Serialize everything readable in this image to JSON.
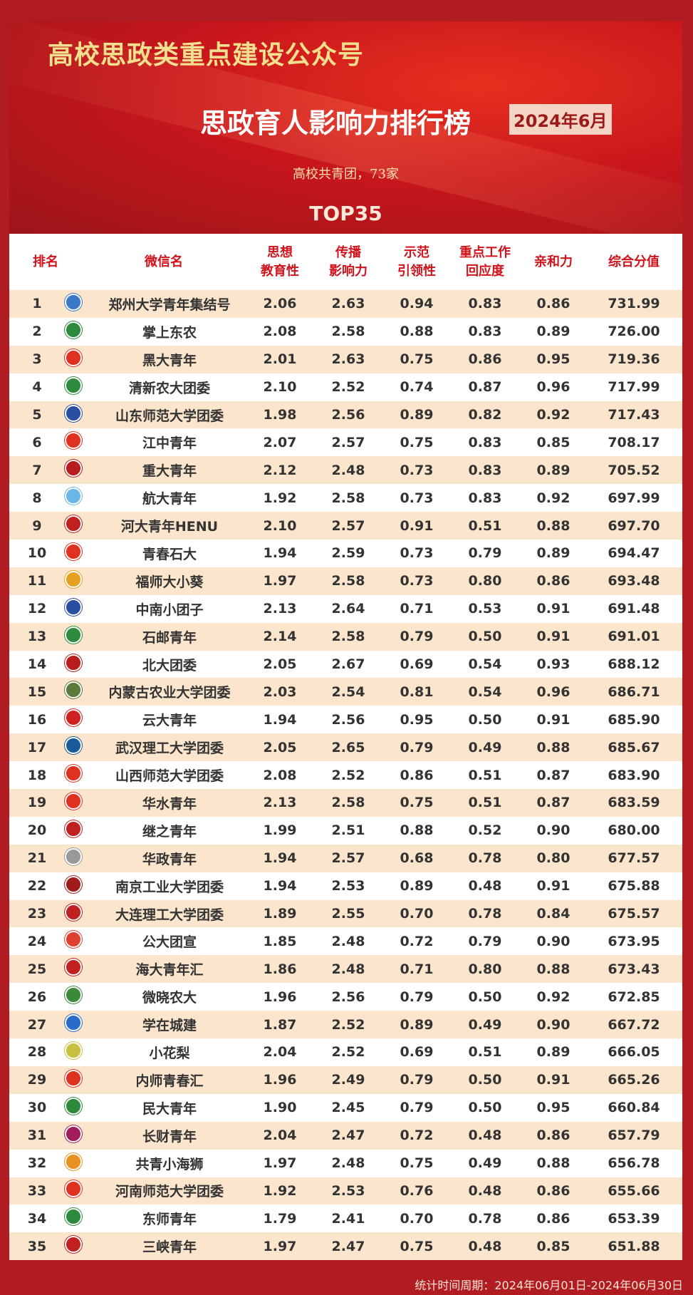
{
  "header": {
    "org_title": "高校思政类重点建设公众号",
    "main_title": "思政育人影响力排行榜",
    "date_badge": "2024年6月",
    "subtitle": "高校共青团，73家",
    "top_label": "TOP35"
  },
  "columns": [
    "排名",
    "微信名",
    "思想\n教育性",
    "传播\n影响力",
    "示范\n引领性",
    "重点工作\n回应度",
    "亲和力",
    "综合分值"
  ],
  "rows": [
    [
      "1",
      "郑州大学青年集结号",
      "2.06",
      "2.63",
      "0.94",
      "0.83",
      "0.86",
      "731.99"
    ],
    [
      "2",
      "掌上东农",
      "2.08",
      "2.58",
      "0.88",
      "0.83",
      "0.89",
      "726.00"
    ],
    [
      "3",
      "黑大青年",
      "2.01",
      "2.63",
      "0.75",
      "0.86",
      "0.95",
      "719.36"
    ],
    [
      "4",
      "清新农大团委",
      "2.10",
      "2.52",
      "0.74",
      "0.87",
      "0.96",
      "717.99"
    ],
    [
      "5",
      "山东师范大学团委",
      "1.98",
      "2.56",
      "0.89",
      "0.82",
      "0.92",
      "717.43"
    ],
    [
      "6",
      "江中青年",
      "2.07",
      "2.57",
      "0.75",
      "0.83",
      "0.85",
      "708.17"
    ],
    [
      "7",
      "重大青年",
      "2.12",
      "2.48",
      "0.73",
      "0.83",
      "0.89",
      "705.52"
    ],
    [
      "8",
      "航大青年",
      "1.92",
      "2.58",
      "0.73",
      "0.83",
      "0.92",
      "697.99"
    ],
    [
      "9",
      "河大青年HENU",
      "2.10",
      "2.57",
      "0.91",
      "0.51",
      "0.88",
      "697.70"
    ],
    [
      "10",
      "青春石大",
      "1.94",
      "2.59",
      "0.73",
      "0.79",
      "0.89",
      "694.47"
    ],
    [
      "11",
      "福师大小葵",
      "1.97",
      "2.58",
      "0.73",
      "0.80",
      "0.86",
      "693.48"
    ],
    [
      "12",
      "中南小团子",
      "2.13",
      "2.64",
      "0.71",
      "0.53",
      "0.91",
      "691.48"
    ],
    [
      "13",
      "石邮青年",
      "2.14",
      "2.58",
      "0.79",
      "0.50",
      "0.91",
      "691.01"
    ],
    [
      "14",
      "北大团委",
      "2.05",
      "2.67",
      "0.69",
      "0.54",
      "0.93",
      "688.12"
    ],
    [
      "15",
      "内蒙古农业大学团委",
      "2.03",
      "2.54",
      "0.81",
      "0.54",
      "0.96",
      "686.71"
    ],
    [
      "16",
      "云大青年",
      "1.94",
      "2.56",
      "0.95",
      "0.50",
      "0.91",
      "685.90"
    ],
    [
      "17",
      "武汉理工大学团委",
      "2.05",
      "2.65",
      "0.79",
      "0.49",
      "0.88",
      "685.67"
    ],
    [
      "18",
      "山西师范大学团委",
      "2.08",
      "2.52",
      "0.86",
      "0.51",
      "0.87",
      "683.90"
    ],
    [
      "19",
      "华水青年",
      "2.13",
      "2.58",
      "0.75",
      "0.51",
      "0.87",
      "683.59"
    ],
    [
      "20",
      "继之青年",
      "1.99",
      "2.51",
      "0.88",
      "0.52",
      "0.90",
      "680.00"
    ],
    [
      "21",
      "华政青年",
      "1.94",
      "2.57",
      "0.68",
      "0.78",
      "0.80",
      "677.57"
    ],
    [
      "22",
      "南京工业大学团委",
      "1.94",
      "2.53",
      "0.89",
      "0.48",
      "0.91",
      "675.88"
    ],
    [
      "23",
      "大连理工大学团委",
      "1.89",
      "2.55",
      "0.70",
      "0.78",
      "0.84",
      "675.57"
    ],
    [
      "24",
      "公大团宣",
      "1.85",
      "2.48",
      "0.72",
      "0.79",
      "0.90",
      "673.95"
    ],
    [
      "25",
      "海大青年汇",
      "1.86",
      "2.48",
      "0.71",
      "0.80",
      "0.88",
      "673.43"
    ],
    [
      "26",
      "微晓农大",
      "1.96",
      "2.56",
      "0.79",
      "0.50",
      "0.92",
      "672.85"
    ],
    [
      "27",
      "学在城建",
      "1.87",
      "2.52",
      "0.89",
      "0.49",
      "0.90",
      "667.72"
    ],
    [
      "28",
      "小花梨",
      "2.04",
      "2.52",
      "0.69",
      "0.51",
      "0.89",
      "666.05"
    ],
    [
      "29",
      "内师青春汇",
      "1.96",
      "2.49",
      "0.79",
      "0.50",
      "0.91",
      "665.26"
    ],
    [
      "30",
      "民大青年",
      "1.90",
      "2.45",
      "0.79",
      "0.50",
      "0.95",
      "660.84"
    ],
    [
      "31",
      "长财青年",
      "2.04",
      "2.47",
      "0.72",
      "0.48",
      "0.86",
      "657.79"
    ],
    [
      "32",
      "共青小海狮",
      "1.97",
      "2.48",
      "0.75",
      "0.49",
      "0.88",
      "656.78"
    ],
    [
      "33",
      "河南师范大学团委",
      "1.92",
      "2.53",
      "0.76",
      "0.48",
      "0.86",
      "655.66"
    ],
    [
      "34",
      "东师青年",
      "1.79",
      "2.41",
      "0.70",
      "0.78",
      "0.86",
      "653.39"
    ],
    [
      "35",
      "三峡青年",
      "1.97",
      "2.47",
      "0.75",
      "0.48",
      "0.85",
      "651.88"
    ]
  ],
  "footer": "统计时间周期：2024年06月01日-2024年06月30日",
  "colors": {
    "border": "#b01c22",
    "header_text": "#d0121b",
    "stripe": "#fce5cd"
  }
}
